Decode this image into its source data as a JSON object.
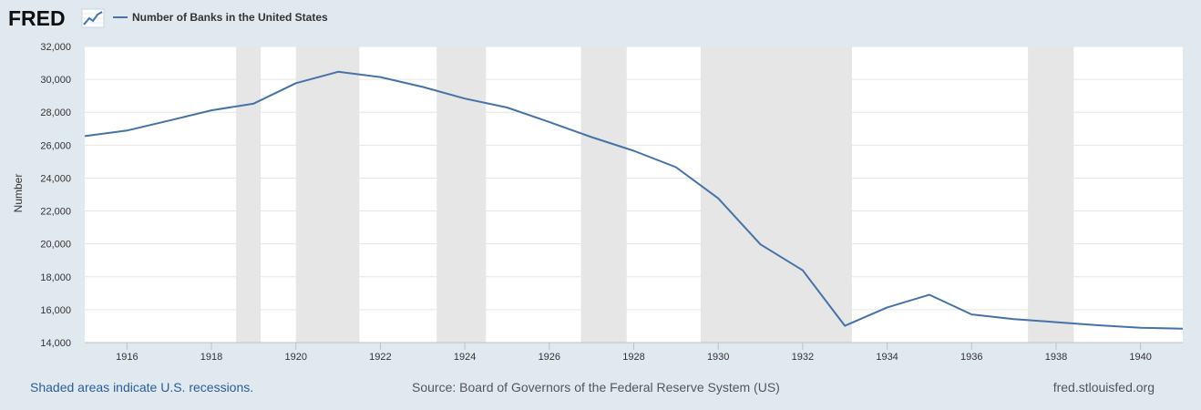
{
  "header": {
    "logo_text": "FRED",
    "logo_icon": "fred-trend-chart-icon"
  },
  "footer": {
    "recession_note": "Shaded areas indicate U.S. recessions.",
    "source": "Source: Board of Governors of the Federal Reserve System (US)",
    "site": "fred.stlouisfed.org"
  },
  "colors": {
    "line": "#4572a7",
    "recession": "#e6e6e6",
    "background": "#e1e9f0",
    "plot": "#ffffff",
    "grid": "#e6e6e6"
  },
  "chart_data": {
    "type": "line",
    "title": "",
    "xlabel": "",
    "ylabel": "Number",
    "xlim": [
      1915,
      1941
    ],
    "ylim": [
      14000,
      32000
    ],
    "x_ticks": [
      "1916",
      "1918",
      "1920",
      "1922",
      "1924",
      "1926",
      "1928",
      "1930",
      "1932",
      "1934",
      "1936",
      "1938",
      "1940"
    ],
    "y_ticks": [
      "14,000",
      "16,000",
      "18,000",
      "20,000",
      "22,000",
      "24,000",
      "26,000",
      "28,000",
      "30,000",
      "32,000"
    ],
    "grid": true,
    "legend_position": "top-left",
    "series": [
      {
        "name": "Number of Banks in the United States",
        "x": [
          1915,
          1916,
          1917,
          1918,
          1919,
          1920,
          1921,
          1922,
          1923,
          1924,
          1925,
          1926,
          1927,
          1928,
          1929,
          1930,
          1931,
          1932,
          1933,
          1934,
          1935,
          1936,
          1937,
          1938,
          1939,
          1940,
          1941
        ],
        "values": [
          26550,
          26890,
          27500,
          28120,
          28530,
          29770,
          30460,
          30140,
          29540,
          28830,
          28290,
          27410,
          26490,
          25660,
          24660,
          22770,
          19970,
          18390,
          15020,
          16140,
          16910,
          15710,
          15430,
          15240,
          15050,
          14900,
          14850
        ]
      }
    ],
    "recessions": [
      {
        "start": "1918-08",
        "end": "1919-03"
      },
      {
        "start": "1920-01",
        "end": "1921-07"
      },
      {
        "start": "1923-05",
        "end": "1924-07"
      },
      {
        "start": "1926-10",
        "end": "1927-11"
      },
      {
        "start": "1929-08",
        "end": "1933-03"
      },
      {
        "start": "1937-05",
        "end": "1938-06"
      }
    ]
  }
}
